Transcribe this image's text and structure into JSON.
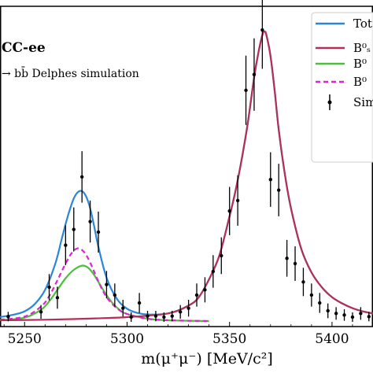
{
  "chart_data": {
    "type": "line",
    "xlabel": "m(μ⁺μ⁻) [MeV/c²]",
    "xlim": [
      5238,
      5420
    ],
    "ylim": [
      -1,
      60
    ],
    "xticks": [
      5250,
      5300,
      5350,
      5400
    ],
    "xtick_labels": [
      "5250",
      "5300",
      "5350",
      "5400"
    ],
    "grid": false,
    "legend_position": "top-right",
    "annotations": [
      "CC-ee",
      "→ bb̄ Delphes simulation"
    ],
    "series": [
      {
        "name": "Tot",
        "style": "solid",
        "color": "#2a86d8",
        "x": [
          5238,
          5245,
          5250,
          5255,
          5260,
          5265,
          5268,
          5270,
          5272,
          5274,
          5276,
          5278,
          5280,
          5282,
          5284,
          5286,
          5290,
          5295,
          5300,
          5305,
          5310,
          5320,
          5330,
          5335,
          5340,
          5345,
          5350,
          5353,
          5356,
          5359,
          5362,
          5364,
          5366,
          5367,
          5368,
          5370,
          5372,
          5374,
          5377,
          5380,
          5385,
          5390,
          5395,
          5400,
          5405,
          5410,
          5415,
          5420
        ],
        "y": [
          0.8,
          1.3,
          1.9,
          3.3,
          6.0,
          11.0,
          15.5,
          18.5,
          21.2,
          23.4,
          24.6,
          24.8,
          23.8,
          21.5,
          18.0,
          14.2,
          8.3,
          4.3,
          2.4,
          1.6,
          1.3,
          1.5,
          3.0,
          4.6,
          8.0,
          12.5,
          20.0,
          25.0,
          31.0,
          38.0,
          46.5,
          51.0,
          54.5,
          55.2,
          54.5,
          50.5,
          44.0,
          36.5,
          28.0,
          21.5,
          13.8,
          9.3,
          6.5,
          4.6,
          3.4,
          2.5,
          1.9,
          1.5
        ]
      },
      {
        "name": "B⁰ₛ",
        "style": "solid",
        "color": "#b52e57",
        "x": [
          5238,
          5260,
          5280,
          5300,
          5320,
          5330,
          5335,
          5340,
          5345,
          5350,
          5353,
          5356,
          5359,
          5362,
          5364,
          5366,
          5367,
          5368,
          5370,
          5372,
          5374,
          5377,
          5380,
          5385,
          5390,
          5395,
          5400,
          5405,
          5410,
          5415,
          5420
        ],
        "y": [
          0.2,
          0.3,
          0.5,
          0.8,
          1.5,
          3.0,
          4.6,
          8.0,
          12.5,
          20.0,
          25.0,
          31.0,
          38.0,
          46.5,
          51.0,
          54.5,
          55.2,
          54.5,
          50.5,
          44.0,
          36.5,
          28.0,
          21.5,
          13.8,
          9.3,
          6.5,
          4.6,
          3.4,
          2.5,
          1.9,
          1.5
        ]
      },
      {
        "name": "B⁰",
        "style": "solid",
        "color": "#4cbf3a",
        "x": [
          5238,
          5250,
          5258,
          5262,
          5266,
          5270,
          5274,
          5278,
          5281,
          5284,
          5288,
          5292,
          5296,
          5300,
          5310,
          5320,
          5340
        ],
        "y": [
          0.2,
          0.7,
          2.2,
          3.8,
          6.0,
          8.2,
          9.8,
          10.6,
          10.2,
          8.8,
          6.2,
          3.9,
          2.3,
          1.4,
          0.5,
          0.2,
          0.05
        ]
      },
      {
        "name": "B⁰",
        "style": "dashed",
        "color": "#e022d6",
        "x": [
          5238,
          5250,
          5258,
          5262,
          5266,
          5270,
          5273,
          5276,
          5279,
          5282,
          5286,
          5290,
          5295,
          5300,
          5310,
          5320,
          5340
        ],
        "y": [
          0.3,
          0.9,
          2.8,
          4.8,
          7.8,
          11.0,
          13.0,
          13.9,
          13.2,
          11.2,
          7.6,
          4.6,
          2.5,
          1.4,
          0.5,
          0.2,
          0.05
        ]
      },
      {
        "name": "Sim",
        "style": "points",
        "color": "#000000",
        "x": [
          5242,
          5258,
          5262,
          5266,
          5270,
          5274,
          5278,
          5282,
          5286,
          5290,
          5294,
          5298,
          5302,
          5306,
          5310,
          5314,
          5318,
          5322,
          5326,
          5330,
          5334,
          5338,
          5342,
          5346,
          5350,
          5354,
          5358,
          5362,
          5366,
          5370,
          5374,
          5378,
          5382,
          5386,
          5390,
          5394,
          5398,
          5402,
          5406,
          5410,
          5414,
          5418
        ],
        "y": [
          0.9,
          1.8,
          6.5,
          4.5,
          14.5,
          17.5,
          27.5,
          19.0,
          17.0,
          7.0,
          5.0,
          2.5,
          0.8,
          3.5,
          1.0,
          1.0,
          0.8,
          1.0,
          1.8,
          2.5,
          5.0,
          6.0,
          9.5,
          12.5,
          21.0,
          23.0,
          44.0,
          47.0,
          55.5,
          27.0,
          25.0,
          12.0,
          11.0,
          7.5,
          5.0,
          3.5,
          2.0,
          1.5,
          1.2,
          0.8,
          1.5,
          0.9
        ],
        "err": [
          0.9,
          1.3,
          2.5,
          2.1,
          3.8,
          4.2,
          4.9,
          4.0,
          3.9,
          2.6,
          2.2,
          1.6,
          0.9,
          1.9,
          1.0,
          1.0,
          0.9,
          1.0,
          1.3,
          1.6,
          2.2,
          2.4,
          3.1,
          3.5,
          4.6,
          4.8,
          6.6,
          6.9,
          7.4,
          5.2,
          5.0,
          3.5,
          3.3,
          2.7,
          2.2,
          1.9,
          1.4,
          1.2,
          1.1,
          0.9,
          1.2,
          0.9
        ]
      }
    ]
  }
}
